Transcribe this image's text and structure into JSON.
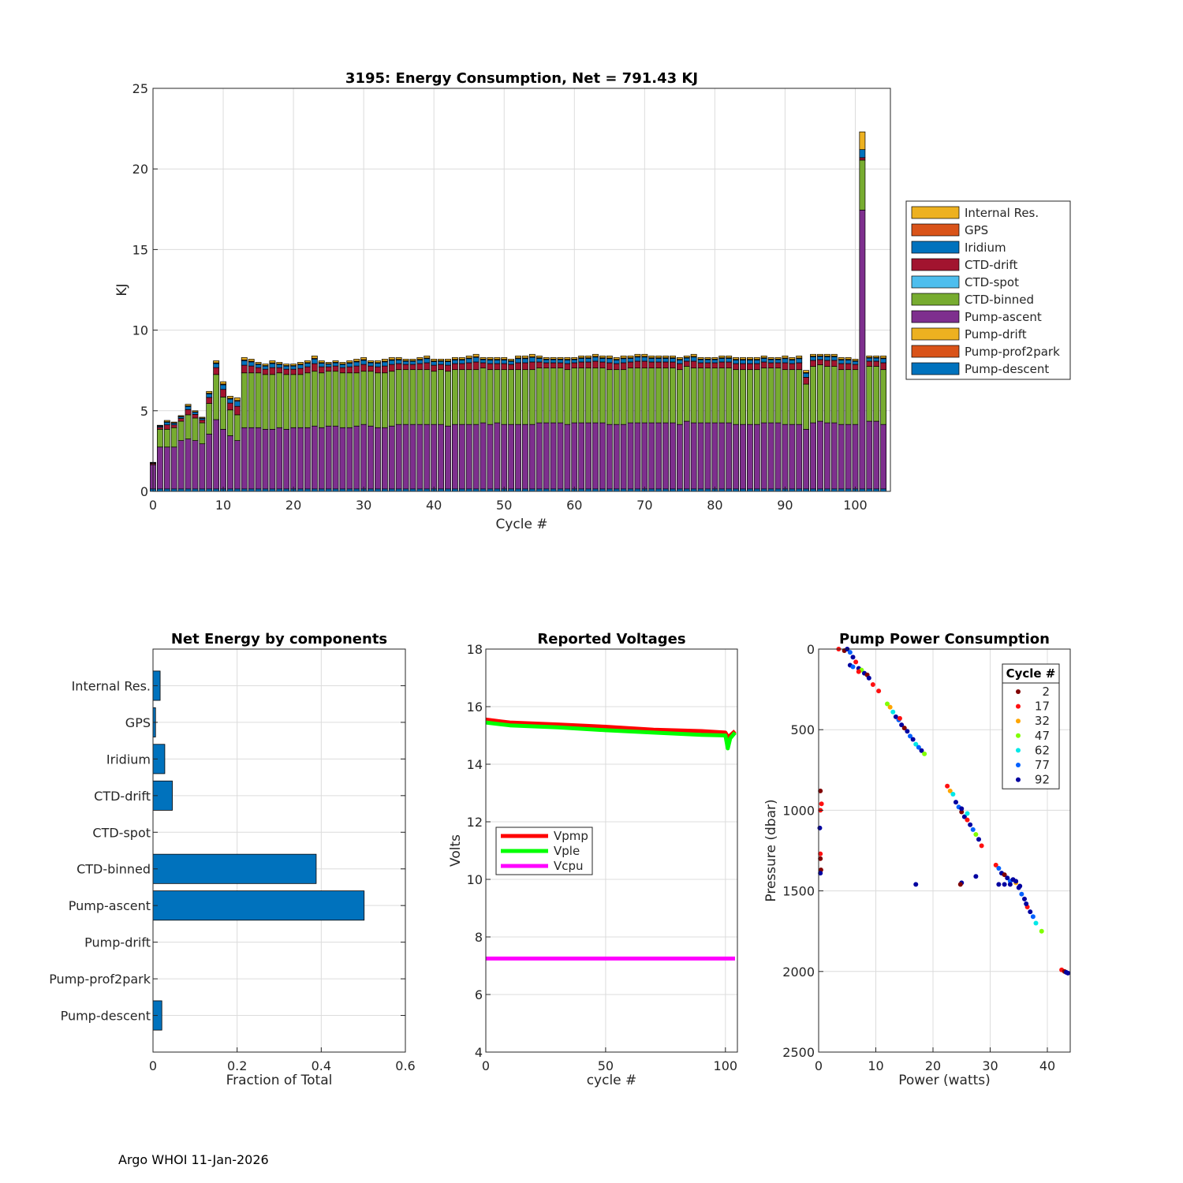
{
  "footer": "Argo WHOI 11-Jan-2026",
  "chart_data": [
    {
      "id": "energy",
      "type": "bar",
      "stacked": true,
      "title": "3195: Energy Consumption,  Net = 791.43 KJ",
      "xlabel": "Cycle #",
      "ylabel": "KJ",
      "xlim": [
        0,
        105
      ],
      "ylim": [
        0,
        25
      ],
      "xticks": [
        0,
        10,
        20,
        30,
        40,
        50,
        60,
        70,
        80,
        90,
        100
      ],
      "yticks": [
        0,
        5,
        10,
        15,
        20,
        25
      ],
      "grid": true,
      "legend_position": "outside-right",
      "legend_order": [
        "Internal Res.",
        "GPS",
        "Iridium",
        "CTD-drift",
        "CTD-spot",
        "CTD-binned",
        "Pump-ascent",
        "Pump-drift",
        "Pump-prof2park",
        "Pump-descent"
      ],
      "series_colors": {
        "Pump-descent": "#0072bd",
        "Pump-prof2park": "#d95319",
        "Pump-drift": "#edb120",
        "Pump-ascent": "#7e2f8e",
        "CTD-binned": "#77ac30",
        "CTD-spot": "#4dbeee",
        "CTD-drift": "#a2142f",
        "Iridium": "#0072bd",
        "GPS": "#d95319",
        "Internal Res.": "#edb120"
      },
      "cycles": [
        0,
        1,
        2,
        3,
        4,
        5,
        6,
        7,
        8,
        9,
        10,
        11,
        12,
        13,
        14,
        15,
        16,
        17,
        18,
        19,
        20,
        21,
        22,
        23,
        24,
        25,
        26,
        27,
        28,
        29,
        30,
        31,
        32,
        33,
        34,
        35,
        36,
        37,
        38,
        39,
        40,
        41,
        42,
        43,
        44,
        45,
        46,
        47,
        48,
        49,
        50,
        51,
        52,
        53,
        54,
        55,
        56,
        57,
        58,
        59,
        60,
        61,
        62,
        63,
        64,
        65,
        66,
        67,
        68,
        69,
        70,
        71,
        72,
        73,
        74,
        75,
        76,
        77,
        78,
        79,
        80,
        81,
        82,
        83,
        84,
        85,
        86,
        87,
        88,
        89,
        90,
        91,
        92,
        93,
        94,
        95,
        96,
        97,
        98,
        99,
        100,
        101,
        102,
        103,
        104
      ],
      "pump_ascent": [
        1.5,
        2.6,
        2.6,
        2.6,
        3.0,
        3.1,
        3.0,
        2.8,
        3.4,
        4.3,
        3.7,
        3.3,
        3.0,
        3.8,
        3.8,
        3.8,
        3.7,
        3.7,
        3.8,
        3.7,
        3.8,
        3.8,
        3.8,
        3.9,
        3.8,
        3.9,
        3.9,
        3.8,
        3.8,
        3.9,
        4.0,
        3.9,
        3.8,
        3.8,
        3.9,
        4.0,
        4.0,
        4.0,
        4.0,
        4.0,
        4.0,
        4.0,
        3.9,
        4.0,
        4.0,
        4.0,
        4.0,
        4.1,
        4.0,
        4.1,
        4.0,
        4.0,
        4.0,
        4.0,
        4.0,
        4.1,
        4.1,
        4.1,
        4.1,
        4.0,
        4.1,
        4.1,
        4.1,
        4.1,
        4.1,
        4.0,
        4.0,
        4.0,
        4.1,
        4.1,
        4.1,
        4.1,
        4.1,
        4.1,
        4.1,
        4.0,
        4.2,
        4.1,
        4.1,
        4.1,
        4.1,
        4.1,
        4.1,
        4.0,
        4.0,
        4.0,
        4.0,
        4.1,
        4.1,
        4.1,
        4.0,
        4.0,
        4.0,
        3.7,
        4.1,
        4.2,
        4.1,
        4.1,
        4.0,
        4.0,
        4.0,
        17.3,
        4.2,
        4.2,
        4.0
      ],
      "ctd_binned": [
        0.0,
        1.1,
        1.1,
        1.2,
        1.2,
        1.5,
        1.4,
        1.3,
        1.9,
        2.8,
        2.0,
        1.6,
        1.6,
        3.4,
        3.4,
        3.4,
        3.4,
        3.4,
        3.4,
        3.4,
        3.3,
        3.3,
        3.4,
        3.4,
        3.4,
        3.4,
        3.4,
        3.4,
        3.4,
        3.3,
        3.3,
        3.4,
        3.4,
        3.4,
        3.4,
        3.4,
        3.4,
        3.4,
        3.4,
        3.4,
        3.3,
        3.4,
        3.4,
        3.4,
        3.4,
        3.4,
        3.4,
        3.4,
        3.4,
        3.3,
        3.4,
        3.4,
        3.4,
        3.4,
        3.4,
        3.4,
        3.4,
        3.4,
        3.4,
        3.4,
        3.4,
        3.4,
        3.4,
        3.4,
        3.4,
        3.4,
        3.4,
        3.4,
        3.4,
        3.4,
        3.4,
        3.4,
        3.4,
        3.4,
        3.4,
        3.4,
        3.4,
        3.4,
        3.4,
        3.4,
        3.4,
        3.4,
        3.4,
        3.4,
        3.4,
        3.4,
        3.4,
        3.4,
        3.4,
        3.4,
        3.4,
        3.4,
        3.4,
        2.8,
        3.5,
        3.5,
        3.5,
        3.5,
        3.4,
        3.4,
        3.4,
        3.1,
        3.4,
        3.4,
        3.4
      ],
      "top_total": [
        1.8,
        4.1,
        4.4,
        4.3,
        4.7,
        5.4,
        5.0,
        4.6,
        6.2,
        8.1,
        6.8,
        5.9,
        5.8,
        8.3,
        8.2,
        8.0,
        7.9,
        8.1,
        8.0,
        7.9,
        7.9,
        8.0,
        8.1,
        8.4,
        8.1,
        8.0,
        8.1,
        8.0,
        8.1,
        8.2,
        8.3,
        8.1,
        8.1,
        8.2,
        8.3,
        8.3,
        8.2,
        8.2,
        8.3,
        8.4,
        8.2,
        8.2,
        8.2,
        8.3,
        8.3,
        8.4,
        8.5,
        8.3,
        8.3,
        8.3,
        8.3,
        8.2,
        8.4,
        8.4,
        8.5,
        8.4,
        8.3,
        8.3,
        8.3,
        8.3,
        8.3,
        8.4,
        8.4,
        8.5,
        8.4,
        8.4,
        8.3,
        8.4,
        8.4,
        8.5,
        8.5,
        8.4,
        8.4,
        8.4,
        8.4,
        8.3,
        8.4,
        8.5,
        8.3,
        8.3,
        8.3,
        8.4,
        8.4,
        8.3,
        8.3,
        8.3,
        8.3,
        8.4,
        8.3,
        8.3,
        8.4,
        8.3,
        8.4,
        7.5,
        8.5,
        8.5,
        8.5,
        8.5,
        8.3,
        8.3,
        8.2,
        22.4,
        8.4,
        8.4,
        8.4
      ],
      "cycle101_internal_res": 1.1,
      "cycle101_iridium": 0.5
    },
    {
      "id": "components",
      "type": "bar",
      "orientation": "horizontal",
      "title": "Net Energy by components",
      "xlabel": "Fraction of Total",
      "xlim": [
        0,
        0.6
      ],
      "xticks": [
        0,
        0.2,
        0.4,
        0.6
      ],
      "xtick_labels": [
        "0",
        "0.2",
        "0.4",
        "0.6"
      ],
      "grid": true,
      "color": "#0072bd",
      "categories": [
        "Internal Res.",
        "GPS",
        "Iridium",
        "CTD-drift",
        "CTD-spot",
        "CTD-binned",
        "Pump-ascent",
        "Pump-drift",
        "Pump-prof2park",
        "Pump-descent"
      ],
      "values": [
        0.017,
        0.006,
        0.028,
        0.046,
        0.0,
        0.388,
        0.502,
        0.0,
        0.0,
        0.021
      ]
    },
    {
      "id": "voltages",
      "type": "line",
      "title": "Reported Voltages",
      "xlabel": "cycle #",
      "ylabel": "Volts",
      "xlim": [
        0,
        105
      ],
      "ylim": [
        4,
        18
      ],
      "xticks": [
        0,
        50,
        100
      ],
      "yticks": [
        4,
        6,
        8,
        10,
        12,
        14,
        16,
        18
      ],
      "grid": true,
      "legend_position": "left-middle",
      "series": [
        {
          "name": "Vpmp",
          "color": "#ff0000",
          "points": [
            [
              0,
              15.55
            ],
            [
              10,
              15.45
            ],
            [
              30,
              15.38
            ],
            [
              50,
              15.3
            ],
            [
              70,
              15.2
            ],
            [
              90,
              15.15
            ],
            [
              100,
              15.1
            ],
            [
              101,
              14.95
            ],
            [
              102,
              15.0
            ],
            [
              104,
              15.15
            ]
          ]
        },
        {
          "name": "Vple",
          "color": "#00ff00",
          "points": [
            [
              0,
              15.45
            ],
            [
              10,
              15.35
            ],
            [
              30,
              15.28
            ],
            [
              50,
              15.18
            ],
            [
              70,
              15.1
            ],
            [
              90,
              15.02
            ],
            [
              100,
              15.0
            ],
            [
              101,
              14.55
            ],
            [
              102,
              14.9
            ],
            [
              104,
              15.1
            ]
          ]
        },
        {
          "name": "Vcpu",
          "color": "#ff00ff",
          "points": [
            [
              0,
              7.25
            ],
            [
              50,
              7.25
            ],
            [
              104,
              7.25
            ]
          ]
        }
      ]
    },
    {
      "id": "pump",
      "type": "scatter",
      "title": "Pump Power Consumption",
      "xlabel": "Power (watts)",
      "ylabel": "Pressure (dbar)",
      "xlim": [
        0,
        44
      ],
      "ylim": [
        2500,
        0
      ],
      "xticks": [
        0,
        10,
        20,
        30,
        40
      ],
      "yticks": [
        0,
        500,
        1000,
        1500,
        2000,
        2500
      ],
      "grid": true,
      "legend_title": "Cycle #",
      "legend_position": "top-right",
      "groups": [
        {
          "name": "2",
          "color": "#800000"
        },
        {
          "name": "17",
          "color": "#ff1010"
        },
        {
          "name": "32",
          "color": "#ffa500"
        },
        {
          "name": "47",
          "color": "#80ff00"
        },
        {
          "name": "62",
          "color": "#00e8e8"
        },
        {
          "name": "77",
          "color": "#0060ff"
        },
        {
          "name": "92",
          "color": "#0000a0"
        }
      ],
      "points": [
        [
          3.5,
          0,
          1
        ],
        [
          4.5,
          10,
          0
        ],
        [
          5.0,
          0,
          6
        ],
        [
          5.5,
          20,
          5
        ],
        [
          6.0,
          50,
          6
        ],
        [
          6.5,
          80,
          1
        ],
        [
          5.5,
          100,
          6
        ],
        [
          6.0,
          110,
          5
        ],
        [
          7.0,
          120,
          6
        ],
        [
          7.5,
          130,
          3
        ],
        [
          8.0,
          150,
          6
        ],
        [
          8.5,
          160,
          0
        ],
        [
          8.8,
          180,
          6
        ],
        [
          7.0,
          140,
          1
        ],
        [
          9.5,
          220,
          1
        ],
        [
          10.5,
          260,
          1
        ],
        [
          12.0,
          340,
          3
        ],
        [
          12.5,
          360,
          2
        ],
        [
          13.0,
          390,
          4
        ],
        [
          13.5,
          420,
          6
        ],
        [
          14.0,
          440,
          5
        ],
        [
          14.5,
          470,
          6
        ],
        [
          15.0,
          490,
          0
        ],
        [
          15.5,
          510,
          6
        ],
        [
          16.0,
          540,
          5
        ],
        [
          16.5,
          560,
          6
        ],
        [
          17.0,
          590,
          4
        ],
        [
          17.5,
          610,
          5
        ],
        [
          18.0,
          630,
          6
        ],
        [
          18.5,
          650,
          3
        ],
        [
          14.2,
          430,
          1
        ],
        [
          0.3,
          880,
          0
        ],
        [
          0.5,
          960,
          1
        ],
        [
          0.3,
          1000,
          1
        ],
        [
          0.2,
          1110,
          6
        ],
        [
          0.3,
          1270,
          1
        ],
        [
          0.3,
          1300,
          0
        ],
        [
          0.4,
          1370,
          0
        ],
        [
          0.3,
          1390,
          6
        ],
        [
          22.5,
          850,
          1
        ],
        [
          23.0,
          880,
          2
        ],
        [
          23.5,
          900,
          4
        ],
        [
          24.0,
          950,
          6
        ],
        [
          24.5,
          980,
          5
        ],
        [
          25.0,
          1010,
          0
        ],
        [
          25.5,
          1040,
          6
        ],
        [
          26.0,
          1060,
          1
        ],
        [
          26.5,
          1090,
          6
        ],
        [
          27.0,
          1120,
          5
        ],
        [
          27.5,
          1150,
          3
        ],
        [
          28.0,
          1180,
          6
        ],
        [
          28.5,
          1220,
          1
        ],
        [
          26.0,
          1020,
          4
        ],
        [
          25.0,
          990,
          6
        ],
        [
          17.0,
          1460,
          6
        ],
        [
          25.0,
          1450,
          6
        ],
        [
          24.8,
          1460,
          0
        ],
        [
          27.5,
          1410,
          6
        ],
        [
          31.0,
          1340,
          1
        ],
        [
          31.5,
          1360,
          5
        ],
        [
          32.0,
          1390,
          6
        ],
        [
          32.5,
          1400,
          0
        ],
        [
          33.0,
          1420,
          6
        ],
        [
          33.5,
          1440,
          5
        ],
        [
          34.0,
          1430,
          6
        ],
        [
          34.5,
          1450,
          2
        ],
        [
          35.0,
          1480,
          6
        ],
        [
          35.5,
          1520,
          5
        ],
        [
          36.0,
          1550,
          6
        ],
        [
          36.5,
          1600,
          1
        ],
        [
          37.0,
          1630,
          6
        ],
        [
          37.5,
          1660,
          5
        ],
        [
          38.0,
          1700,
          4
        ],
        [
          39.0,
          1750,
          3
        ],
        [
          31.5,
          1460,
          6
        ],
        [
          32.5,
          1460,
          6
        ],
        [
          33.5,
          1460,
          6
        ],
        [
          34.5,
          1440,
          6
        ],
        [
          35.2,
          1470,
          6
        ],
        [
          36.3,
          1580,
          6
        ],
        [
          42.5,
          1990,
          1
        ],
        [
          43.0,
          2000,
          0
        ],
        [
          43.3,
          2005,
          6
        ],
        [
          43.6,
          2010,
          6
        ]
      ]
    }
  ]
}
